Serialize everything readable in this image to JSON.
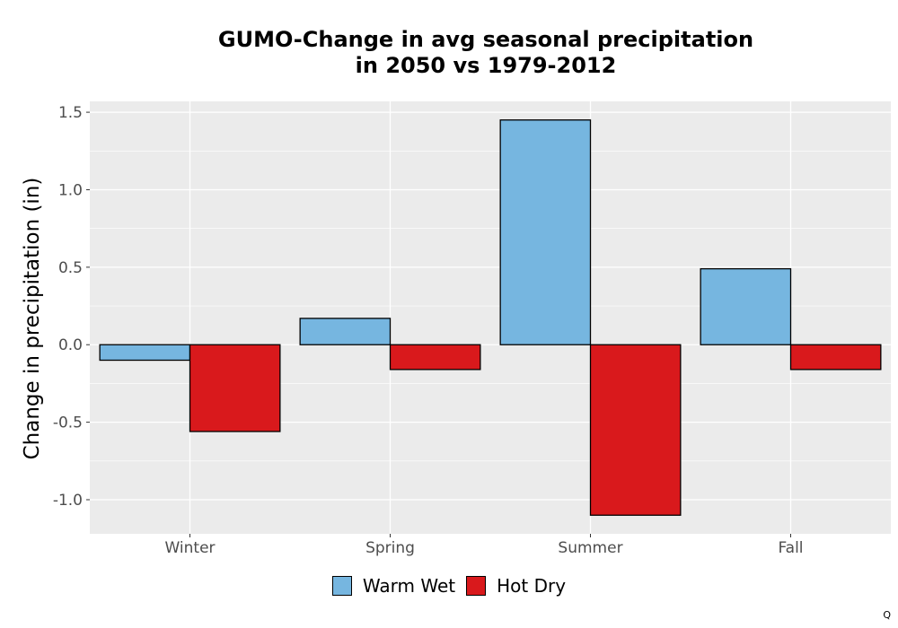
{
  "chart_data": {
    "type": "bar",
    "title_line1": "GUMO-Change in avg seasonal precipitation",
    "title_line2": "in 2050 vs 1979-2012",
    "xlabel": "",
    "ylabel": "Change in precipitation (in)",
    "categories": [
      "Winter",
      "Spring",
      "Summer",
      "Fall"
    ],
    "series": [
      {
        "name": "Warm Wet",
        "color": "#76B6E0",
        "values": [
          -0.1,
          0.17,
          1.45,
          0.49
        ]
      },
      {
        "name": "Hot Dry",
        "color": "#D9191C",
        "values": [
          -0.56,
          -0.16,
          -1.1,
          -0.16
        ]
      }
    ],
    "ylim": [
      -1.22,
      1.57
    ],
    "yticks": [
      -1.0,
      -0.5,
      0.0,
      0.5,
      1.0,
      1.5
    ],
    "ytick_labels": [
      "-1.0",
      "-0.5",
      "0.0",
      "0.5",
      "1.0",
      "1.5"
    ],
    "grid": true,
    "legend_position": "bottom",
    "caption": "Q"
  }
}
